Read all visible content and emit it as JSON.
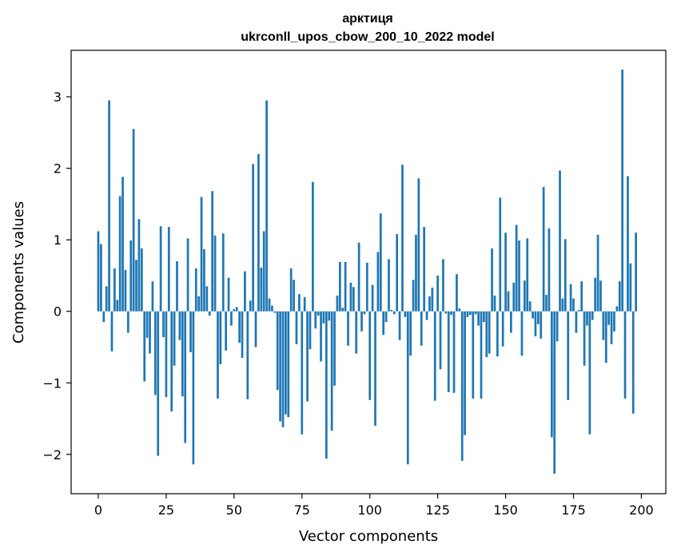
{
  "chart_data": {
    "type": "bar",
    "title_line1": "арктиця",
    "title_line2": "ukrconll_upos_cbow_200_10_2022 model",
    "xlabel": "Vector components",
    "ylabel": "Components values",
    "xlim": [
      -10,
      209
    ],
    "ylim": [
      -2.55,
      3.65
    ],
    "xticks": [
      0,
      25,
      50,
      75,
      100,
      125,
      150,
      175,
      200
    ],
    "yticks": [
      3,
      2,
      1,
      0,
      -1,
      -2
    ],
    "grid": false,
    "color": "#1f77b4",
    "values": [
      1.12,
      0.94,
      -0.15,
      0.35,
      2.95,
      -0.56,
      0.6,
      0.16,
      1.61,
      1.88,
      0.58,
      -0.3,
      0.99,
      2.55,
      0.72,
      1.29,
      0.88,
      -0.98,
      -0.37,
      -0.59,
      0.42,
      -1.17,
      -2.02,
      1.19,
      -0.36,
      -1.2,
      1.18,
      -1.4,
      -0.76,
      0.7,
      -0.4,
      -1.19,
      -1.84,
      1.02,
      -0.57,
      -2.14,
      0.6,
      0.21,
      1.6,
      0.87,
      0.35,
      -0.06,
      1.68,
      1.06,
      -1.22,
      -0.74,
      1.09,
      -0.55,
      0.47,
      -0.2,
      0.03,
      0.06,
      -0.44,
      -0.65,
      0.56,
      -1.23,
      0.15,
      2.06,
      -0.5,
      2.2,
      0.61,
      1.12,
      2.95,
      0.18,
      0.08,
      -0.02,
      -1.1,
      -1.54,
      -1.62,
      -1.44,
      -1.48,
      0.6,
      0.44,
      -0.46,
      0.24,
      -1.72,
      0.2,
      -1.26,
      -0.53,
      1.81,
      -0.24,
      -0.06,
      -0.7,
      -0.17,
      -2.06,
      -0.13,
      -1.67,
      -1.04,
      0.22,
      0.69,
      0.05,
      0.69,
      -0.48,
      0.4,
      0.34,
      -0.59,
      0.96,
      -0.28,
      -0.04,
      0.68,
      -1.24,
      0.37,
      -1.6,
      0.83,
      1.37,
      -0.33,
      -0.15,
      0.73,
      0.02,
      -0.04,
      1.08,
      -0.4,
      2.05,
      -0.08,
      -2.14,
      -0.62,
      0.44,
      1.07,
      1.86,
      -0.48,
      1.18,
      -0.12,
      0.21,
      0.33,
      -1.25,
      0.5,
      -0.81,
      0.73,
      -0.03,
      -1.13,
      -0.05,
      -1.14,
      0.52,
      0.04,
      -2.09,
      -1.73,
      -0.08,
      -0.05,
      -1.22,
      -0.04,
      -0.2,
      -1.22,
      -0.15,
      -0.64,
      -0.59,
      0.88,
      0.22,
      -0.63,
      1.59,
      -0.49,
      1.1,
      0.28,
      -0.3,
      0.4,
      1.21,
      0.99,
      -0.62,
      0.43,
      1.02,
      0.14,
      -0.1,
      -0.35,
      -0.18,
      -0.38,
      1.74,
      0.23,
      1.16,
      -1.76,
      -2.27,
      -0.42,
      1.97,
      0.18,
      1.01,
      -1.24,
      0.38,
      0.18,
      -0.3,
      0.02,
      0.42,
      -0.76,
      -0.2,
      -1.72,
      -0.12,
      0.47,
      1.07,
      0.43,
      -0.4,
      -0.72,
      -0.19,
      -0.46,
      -0.28,
      0.07,
      0.42,
      3.38,
      -1.22,
      1.89,
      0.67,
      -1.43,
      1.1
    ]
  }
}
